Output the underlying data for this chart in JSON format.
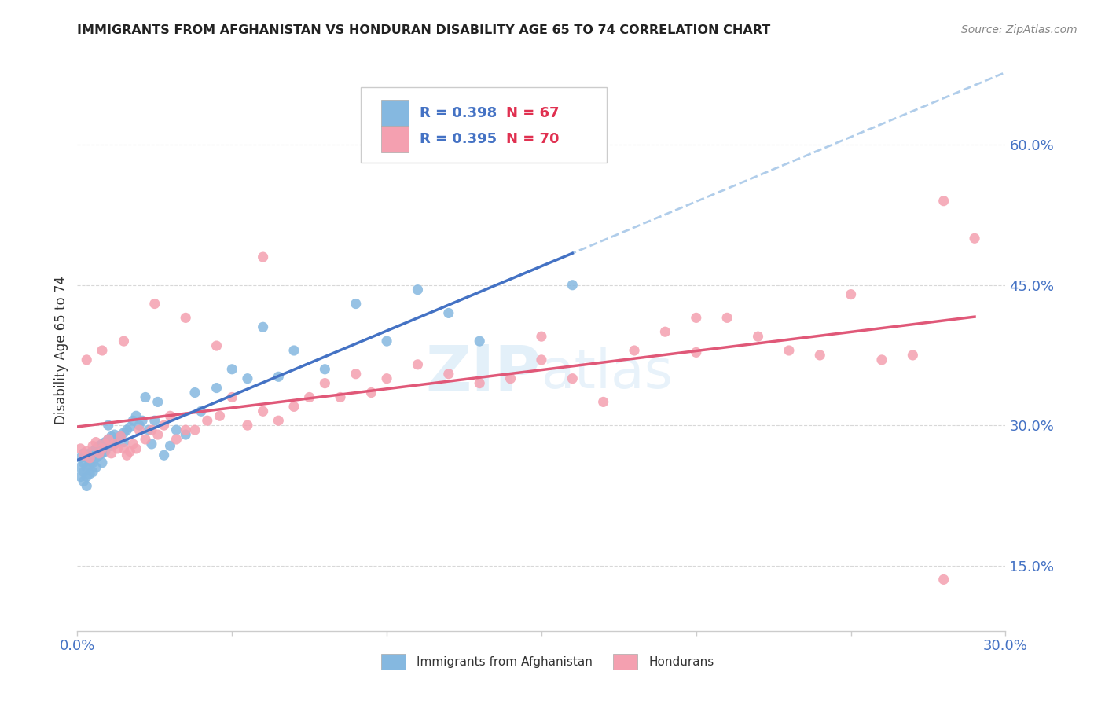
{
  "title": "IMMIGRANTS FROM AFGHANISTAN VS HONDURAN DISABILITY AGE 65 TO 74 CORRELATION CHART",
  "source": "Source: ZipAtlas.com",
  "ylabel": "Disability Age 65 to 74",
  "xlim": [
    0.0,
    0.3
  ],
  "ylim": [
    0.08,
    0.68
  ],
  "legend1_r": "R = 0.398",
  "legend1_n": "N = 67",
  "legend2_r": "R = 0.395",
  "legend2_n": "N = 70",
  "color_afghanistan": "#85b8e0",
  "color_honduras": "#f4a0b0",
  "color_trend_afghanistan": "#4472c4",
  "color_trend_honduras": "#e05878",
  "color_trend_dashed": "#a8c8e8",
  "watermark_zip": "ZIP",
  "watermark_atlas": "atlas",
  "ytick_positions": [
    0.15,
    0.3,
    0.45,
    0.6
  ],
  "ytick_labels": [
    "15.0%",
    "30.0%",
    "45.0%",
    "60.0%"
  ],
  "xtick_positions": [
    0.0,
    0.05,
    0.1,
    0.15,
    0.2,
    0.25,
    0.3
  ],
  "xtick_labels_show": [
    true,
    false,
    false,
    false,
    false,
    false,
    true
  ],
  "afghanistan_x": [
    0.001,
    0.001,
    0.001,
    0.002,
    0.002,
    0.002,
    0.002,
    0.003,
    0.003,
    0.003,
    0.003,
    0.004,
    0.004,
    0.004,
    0.005,
    0.005,
    0.005,
    0.006,
    0.006,
    0.006,
    0.007,
    0.007,
    0.008,
    0.008,
    0.008,
    0.009,
    0.009,
    0.01,
    0.01,
    0.011,
    0.011,
    0.012,
    0.012,
    0.013,
    0.014,
    0.015,
    0.015,
    0.016,
    0.017,
    0.018,
    0.019,
    0.02,
    0.021,
    0.022,
    0.023,
    0.024,
    0.025,
    0.026,
    0.028,
    0.03,
    0.032,
    0.035,
    0.038,
    0.04,
    0.045,
    0.05,
    0.055,
    0.06,
    0.065,
    0.07,
    0.08,
    0.09,
    0.1,
    0.11,
    0.12,
    0.13,
    0.16
  ],
  "afghanistan_y": [
    0.265,
    0.255,
    0.245,
    0.27,
    0.26,
    0.25,
    0.24,
    0.265,
    0.255,
    0.245,
    0.235,
    0.27,
    0.258,
    0.248,
    0.272,
    0.26,
    0.25,
    0.275,
    0.265,
    0.255,
    0.278,
    0.268,
    0.28,
    0.27,
    0.26,
    0.282,
    0.272,
    0.285,
    0.3,
    0.288,
    0.278,
    0.29,
    0.28,
    0.285,
    0.288,
    0.292,
    0.282,
    0.295,
    0.298,
    0.305,
    0.31,
    0.3,
    0.305,
    0.33,
    0.295,
    0.28,
    0.305,
    0.325,
    0.268,
    0.278,
    0.295,
    0.29,
    0.335,
    0.315,
    0.34,
    0.36,
    0.35,
    0.405,
    0.352,
    0.38,
    0.36,
    0.43,
    0.39,
    0.445,
    0.42,
    0.39,
    0.45
  ],
  "honduras_x": [
    0.001,
    0.002,
    0.003,
    0.004,
    0.005,
    0.006,
    0.007,
    0.008,
    0.009,
    0.01,
    0.011,
    0.012,
    0.013,
    0.014,
    0.015,
    0.016,
    0.017,
    0.018,
    0.019,
    0.02,
    0.022,
    0.024,
    0.026,
    0.028,
    0.03,
    0.032,
    0.035,
    0.038,
    0.042,
    0.046,
    0.05,
    0.055,
    0.06,
    0.065,
    0.07,
    0.075,
    0.08,
    0.085,
    0.09,
    0.095,
    0.1,
    0.11,
    0.12,
    0.13,
    0.14,
    0.15,
    0.16,
    0.17,
    0.18,
    0.19,
    0.2,
    0.21,
    0.22,
    0.23,
    0.24,
    0.25,
    0.26,
    0.27,
    0.28,
    0.29,
    0.003,
    0.008,
    0.015,
    0.025,
    0.035,
    0.045,
    0.06,
    0.15,
    0.2,
    0.28
  ],
  "honduras_y": [
    0.275,
    0.268,
    0.272,
    0.265,
    0.278,
    0.282,
    0.27,
    0.275,
    0.28,
    0.285,
    0.27,
    0.28,
    0.275,
    0.288,
    0.275,
    0.268,
    0.272,
    0.28,
    0.275,
    0.295,
    0.285,
    0.295,
    0.29,
    0.3,
    0.31,
    0.285,
    0.295,
    0.295,
    0.305,
    0.31,
    0.33,
    0.3,
    0.315,
    0.305,
    0.32,
    0.33,
    0.345,
    0.33,
    0.355,
    0.335,
    0.35,
    0.365,
    0.355,
    0.345,
    0.35,
    0.37,
    0.35,
    0.325,
    0.38,
    0.4,
    0.378,
    0.415,
    0.395,
    0.38,
    0.375,
    0.44,
    0.37,
    0.375,
    0.54,
    0.5,
    0.37,
    0.38,
    0.39,
    0.43,
    0.415,
    0.385,
    0.48,
    0.395,
    0.415,
    0.135
  ],
  "grid_color": "#d8d8d8",
  "tick_color": "#4472c4"
}
